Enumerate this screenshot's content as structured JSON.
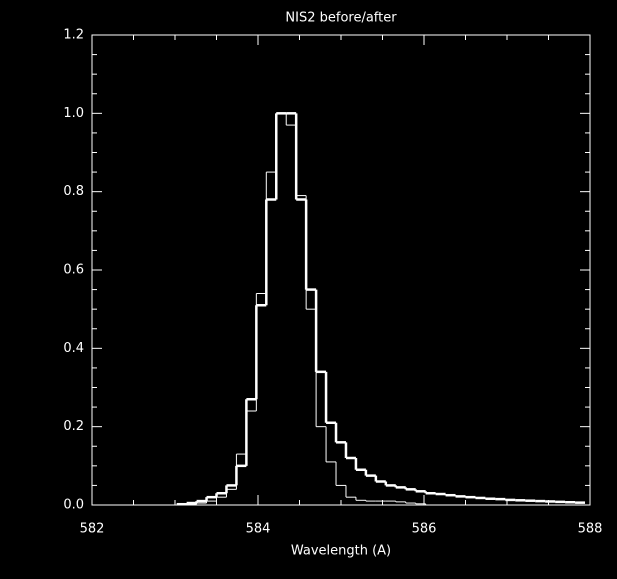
{
  "chart_data": {
    "type": "step",
    "title": "NIS2 before/after",
    "x_label": "Wavelength (A)",
    "x": [
      583.08,
      583.2,
      583.32,
      583.44,
      583.56,
      583.68,
      583.8,
      583.92,
      584.04,
      584.16,
      584.28,
      584.4,
      584.52,
      584.64,
      584.76,
      584.88,
      585.0,
      585.12,
      585.24,
      585.36,
      585.48,
      585.6,
      585.72,
      585.84,
      585.96,
      586.08,
      586.2,
      586.32,
      586.44,
      586.56,
      586.68,
      586.8,
      586.92,
      587.04,
      587.16,
      587.28,
      587.4,
      587.52,
      587.64,
      587.76,
      587.88
    ],
    "series": [
      {
        "color": "#ffffff",
        "values": [
          0.002,
          0.005,
          0.01,
          0.02,
          0.03,
          0.05,
          0.1,
          0.27,
          0.51,
          0.78,
          1.0,
          1.0,
          0.78,
          0.55,
          0.34,
          0.21,
          0.16,
          0.12,
          0.09,
          0.075,
          0.06,
          0.05,
          0.045,
          0.04,
          0.035,
          0.03,
          0.028,
          0.025,
          0.022,
          0.02,
          0.018,
          0.016,
          0.015,
          0.013,
          0.012,
          0.011,
          0.01,
          0.009,
          0.008,
          0.007,
          0.006
        ]
      },
      {
        "color": "#ffffff",
        "values": [
          0,
          0.002,
          0.005,
          0.01,
          0.02,
          0.04,
          0.13,
          0.24,
          0.54,
          0.85,
          1.0,
          0.97,
          0.79,
          0.5,
          0.2,
          0.11,
          0.05,
          0.02,
          0.012,
          0.01,
          0.01,
          0.01,
          0.008,
          0.005,
          0.003,
          0,
          0,
          0,
          0,
          0,
          0,
          0,
          0,
          0,
          0,
          0,
          0,
          0,
          0,
          0,
          0
        ]
      }
    ],
    "line_widths": [
      2.5,
      1
    ],
    "xlim": [
      582,
      588
    ],
    "xticks": [
      582,
      584,
      586,
      588
    ],
    "ylim": [
      0,
      1.2
    ],
    "yticks": [
      {
        "value": 0,
        "label": "0.0"
      },
      {
        "value": 0.2,
        "label": "0.2"
      },
      {
        "value": 0.4,
        "label": "0.4"
      },
      {
        "value": 0.6,
        "label": "0.6"
      },
      {
        "value": 0.8,
        "label": "0.8"
      },
      {
        "value": 1.0,
        "label": "1.0"
      },
      {
        "value": 1.2,
        "label": "1.2"
      }
    ]
  }
}
